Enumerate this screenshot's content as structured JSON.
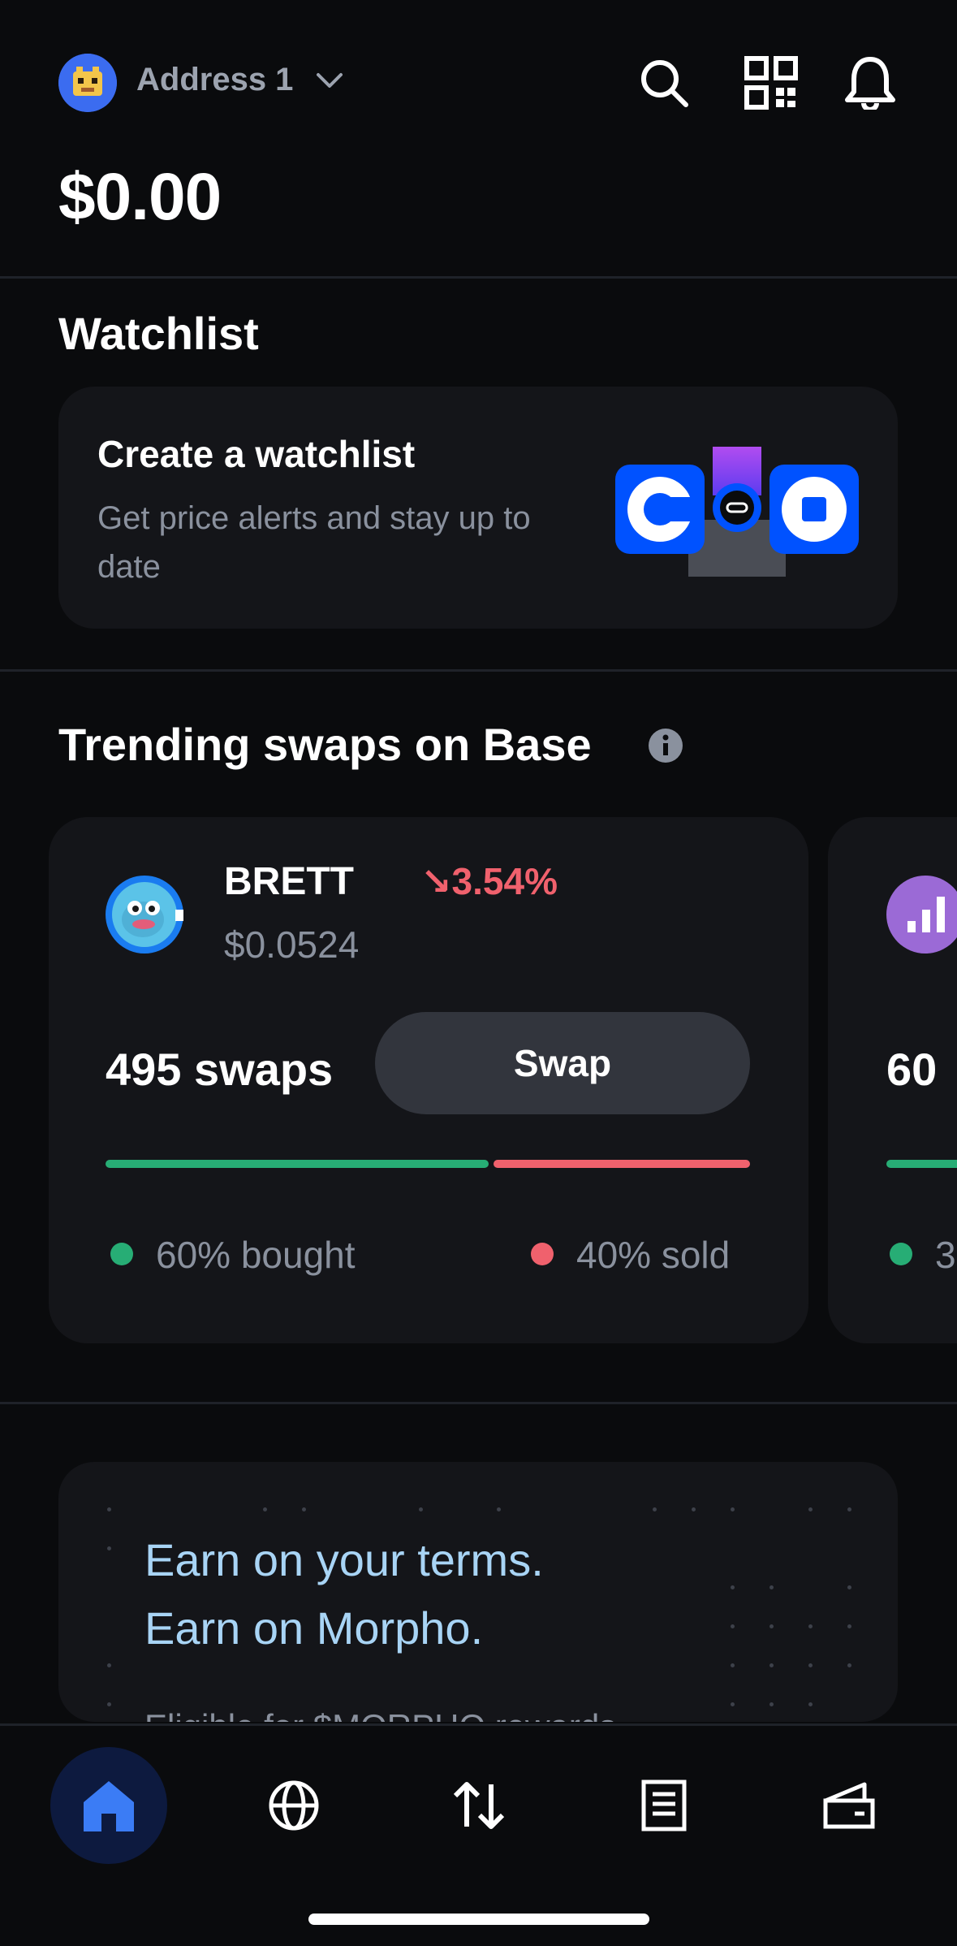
{
  "header": {
    "account_name": "Address 1",
    "balance": "$0.00"
  },
  "watchlist": {
    "section_title": "Watchlist",
    "card_title": "Create a watchlist",
    "card_subtitle": "Get price alerts and stay up to date"
  },
  "trending": {
    "section_title": "Trending swaps on Base",
    "cards": [
      {
        "name": "BRETT",
        "change": "↘3.54%",
        "price": "$0.0524",
        "swaps": "495 swaps",
        "swap_label": "Swap",
        "bought_pct": 60,
        "bought_label": "60% bought",
        "sold_label": "40% sold"
      },
      {
        "swaps": "60",
        "sold_label_partial": "3"
      }
    ]
  },
  "promo": {
    "line1": "Earn on your terms.",
    "line2": "Earn on Morpho.",
    "subtitle": "Eligible for $MORPHO rewards"
  },
  "nav": {
    "items": [
      "home-icon",
      "globe-icon",
      "swap-arrows-icon",
      "document-icon",
      "wallet-icon"
    ],
    "active": "home-icon"
  },
  "colors": {
    "background": "#0a0b0d",
    "card": "#141519",
    "positive": "#27ad75",
    "negative": "#f0616d",
    "accent": "#0052ff"
  }
}
